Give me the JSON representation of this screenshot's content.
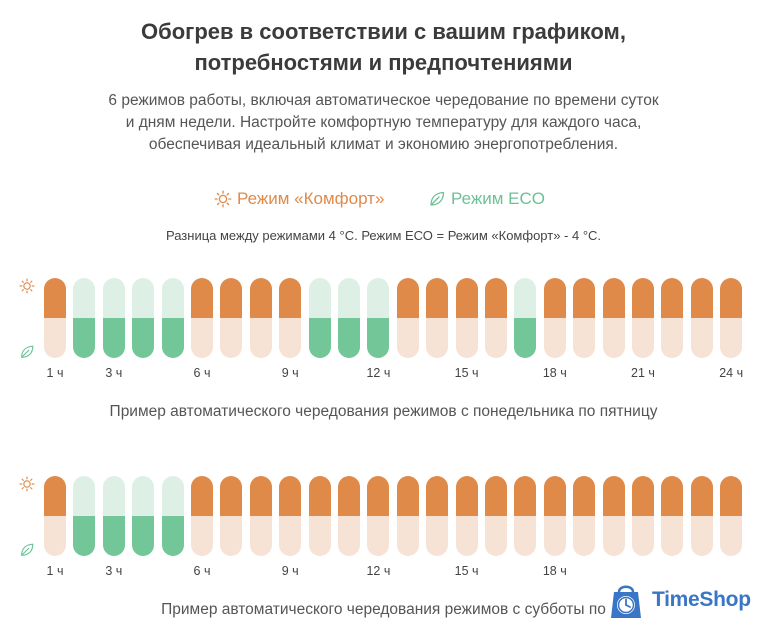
{
  "title_line1": "Обогрев в соответствии с вашим графиком,",
  "title_line2": "потребностями и предпочтениями",
  "subtitle_line1": "6 режимов работы, включая автоматическое чередование по времени суток",
  "subtitle_line2": "и дням недели. Настройте комфортную температуру для каждого часа,",
  "subtitle_line3": "обеспечивая идеальный климат и экономию энергопотребления.",
  "legend": {
    "comfort_label": "Режим «Комфорт»",
    "comfort_icon": "sun-icon",
    "eco_label": "Режим ECO",
    "eco_icon": "leaf-icon"
  },
  "note": "Разница между режимами 4 °С. Режим ЕСО = Режим «Комфорт» - 4 °С.",
  "colors": {
    "comfort": "#e08a4a",
    "comfort_light": "#f7e2d6",
    "eco": "#72c698",
    "eco_light": "#deefe6"
  },
  "schedules": [
    {
      "modes": [
        "comfort",
        "eco",
        "eco",
        "eco",
        "eco",
        "comfort",
        "comfort",
        "comfort",
        "comfort",
        "eco",
        "eco",
        "eco",
        "comfort",
        "comfort",
        "comfort",
        "comfort",
        "eco",
        "comfort",
        "comfort",
        "comfort",
        "comfort",
        "comfort",
        "comfort",
        "comfort"
      ],
      "ticks": [
        "1 ч",
        "3 ч",
        "6 ч",
        "9 ч",
        "12 ч",
        "15 ч",
        "18 ч",
        "21 ч",
        "24 ч"
      ],
      "caption": "Пример автоматического чередования режимов с понедельника по пятницу"
    },
    {
      "modes": [
        "comfort",
        "eco",
        "eco",
        "eco",
        "eco",
        "comfort",
        "comfort",
        "comfort",
        "comfort",
        "comfort",
        "comfort",
        "comfort",
        "comfort",
        "comfort",
        "comfort",
        "comfort",
        "comfort",
        "comfort",
        "comfort",
        "comfort",
        "comfort",
        "comfort",
        "comfort",
        "comfort"
      ],
      "ticks": [
        "1 ч",
        "3 ч",
        "6 ч",
        "9 ч",
        "12 ч",
        "15 ч",
        "18 ч"
      ],
      "caption": "Пример автоматического чередования режимов с субботы по"
    }
  ],
  "logo": {
    "text": "TimeShop",
    "icon": "timeshop-logo-icon"
  }
}
